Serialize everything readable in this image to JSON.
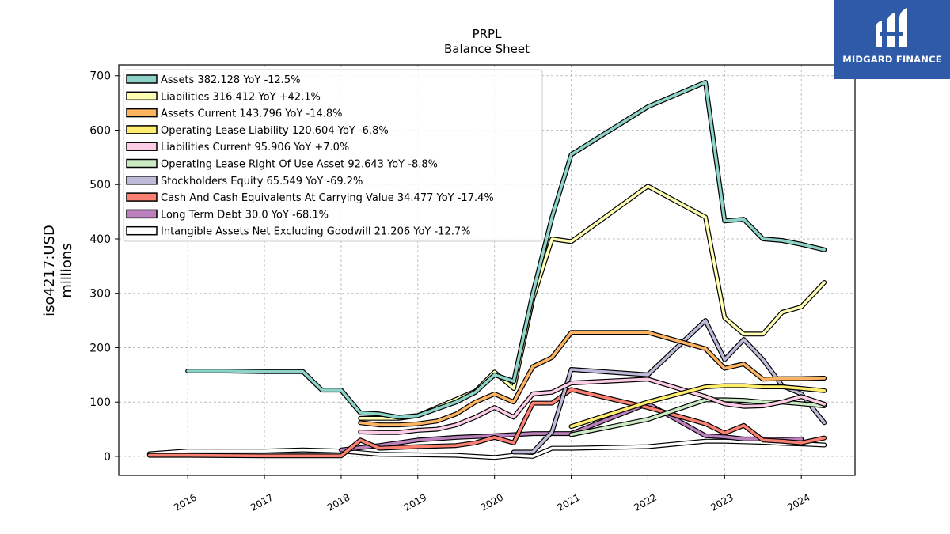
{
  "brand": {
    "name": "MIDGARD FINANCE",
    "color": "#2e5aa8"
  },
  "chart_data": {
    "type": "line",
    "title": "PRPL",
    "subtitle": "Balance  Sheet",
    "ylabel": "iso4217:USD",
    "ylabel2": "millions",
    "xlim": [
      2015.1,
      2024.7
    ],
    "ylim": [
      -35,
      720
    ],
    "yticks": [
      0,
      100,
      200,
      300,
      400,
      500,
      600,
      700
    ],
    "xticks": [
      2016,
      2017,
      2018,
      2019,
      2020,
      2021,
      2022,
      2023,
      2024
    ],
    "xticklabels": [
      "2016",
      "2017",
      "2018",
      "2019",
      "2020",
      "2021",
      "2022",
      "2023",
      "2024"
    ],
    "grid": true,
    "legend_position": "upper-left",
    "series": [
      {
        "name": "Assets  382.128 YoY -12.5%",
        "color": "#8dd3c7",
        "points": [
          [
            2016.0,
            157
          ],
          [
            2016.5,
            157
          ],
          [
            2017.0,
            156
          ],
          [
            2017.5,
            156
          ],
          [
            2017.75,
            122
          ],
          [
            2018.0,
            122
          ],
          [
            2018.25,
            80
          ],
          [
            2018.5,
            78
          ],
          [
            2018.75,
            72
          ],
          [
            2019.0,
            75
          ],
          [
            2019.5,
            100
          ],
          [
            2019.75,
            118
          ],
          [
            2020.0,
            150
          ],
          [
            2020.25,
            138
          ],
          [
            2020.5,
            300
          ],
          [
            2020.75,
            440
          ],
          [
            2021.0,
            555
          ],
          [
            2022.0,
            643
          ],
          [
            2022.75,
            688
          ],
          [
            2023.0,
            433
          ],
          [
            2023.25,
            436
          ],
          [
            2023.5,
            400
          ],
          [
            2023.75,
            397
          ],
          [
            2024.0,
            390
          ],
          [
            2024.3,
            380
          ]
        ]
      },
      {
        "name": "Liabilities  316.412 YoY +42.1%",
        "color": "#ffffb3",
        "points": [
          [
            2018.25,
            70
          ],
          [
            2018.5,
            70
          ],
          [
            2018.75,
            70
          ],
          [
            2019.0,
            75
          ],
          [
            2019.25,
            90
          ],
          [
            2019.5,
            105
          ],
          [
            2019.75,
            120
          ],
          [
            2020.0,
            155
          ],
          [
            2020.25,
            125
          ],
          [
            2020.5,
            290
          ],
          [
            2020.75,
            400
          ],
          [
            2021.0,
            395
          ],
          [
            2022.0,
            497
          ],
          [
            2022.75,
            440
          ],
          [
            2023.0,
            255
          ],
          [
            2023.25,
            225
          ],
          [
            2023.5,
            225
          ],
          [
            2023.75,
            265
          ],
          [
            2024.0,
            275
          ],
          [
            2024.3,
            320
          ]
        ]
      },
      {
        "name": "Assets Current  143.796 YoY -14.8%",
        "color": "#fdb462",
        "points": [
          [
            2018.25,
            62
          ],
          [
            2018.5,
            58
          ],
          [
            2018.75,
            58
          ],
          [
            2019.0,
            60
          ],
          [
            2019.25,
            65
          ],
          [
            2019.5,
            78
          ],
          [
            2019.75,
            100
          ],
          [
            2020.0,
            115
          ],
          [
            2020.25,
            100
          ],
          [
            2020.5,
            165
          ],
          [
            2020.75,
            182
          ],
          [
            2021.0,
            228
          ],
          [
            2022.0,
            228
          ],
          [
            2022.75,
            198
          ],
          [
            2023.0,
            162
          ],
          [
            2023.25,
            170
          ],
          [
            2023.5,
            142
          ],
          [
            2023.75,
            143
          ],
          [
            2024.0,
            143
          ],
          [
            2024.3,
            144
          ]
        ]
      },
      {
        "name": "Operating Lease Liability  120.604 YoY -6.8%",
        "color": "#ffed6f",
        "points": [
          [
            2021.0,
            55
          ],
          [
            2022.0,
            100
          ],
          [
            2022.75,
            128
          ],
          [
            2023.0,
            130
          ],
          [
            2023.25,
            130
          ],
          [
            2023.5,
            128
          ],
          [
            2023.75,
            128
          ],
          [
            2024.0,
            125
          ],
          [
            2024.3,
            121
          ]
        ]
      },
      {
        "name": "Liabilities Current  95.906 YoY +7.0%",
        "color": "#fccde5",
        "points": [
          [
            2018.25,
            45
          ],
          [
            2018.5,
            44
          ],
          [
            2018.75,
            44
          ],
          [
            2019.0,
            48
          ],
          [
            2019.25,
            50
          ],
          [
            2019.5,
            58
          ],
          [
            2019.75,
            72
          ],
          [
            2020.0,
            90
          ],
          [
            2020.25,
            72
          ],
          [
            2020.5,
            115
          ],
          [
            2020.75,
            118
          ],
          [
            2021.0,
            135
          ],
          [
            2022.0,
            142
          ],
          [
            2022.75,
            110
          ],
          [
            2023.0,
            97
          ],
          [
            2023.25,
            92
          ],
          [
            2023.5,
            93
          ],
          [
            2023.75,
            100
          ],
          [
            2024.0,
            110
          ],
          [
            2024.3,
            96
          ]
        ]
      },
      {
        "name": "Operating Lease Right Of Use Asset  92.643 YoY -8.8%",
        "color": "#ccebc5",
        "points": [
          [
            2021.0,
            40
          ],
          [
            2022.0,
            68
          ],
          [
            2022.75,
            104
          ],
          [
            2023.0,
            104
          ],
          [
            2023.25,
            103
          ],
          [
            2023.5,
            100
          ],
          [
            2023.75,
            100
          ],
          [
            2024.0,
            97
          ],
          [
            2024.3,
            93
          ]
        ]
      },
      {
        "name": "Stockholders Equity  65.549 YoY -69.2%",
        "color": "#bebada",
        "points": [
          [
            2020.25,
            8
          ],
          [
            2020.5,
            8
          ],
          [
            2020.75,
            45
          ],
          [
            2021.0,
            160
          ],
          [
            2022.0,
            150
          ],
          [
            2022.75,
            250
          ],
          [
            2023.0,
            178
          ],
          [
            2023.25,
            215
          ],
          [
            2023.5,
            178
          ],
          [
            2023.75,
            130
          ],
          [
            2024.0,
            115
          ],
          [
            2024.3,
            62
          ]
        ]
      },
      {
        "name": "Cash And Cash Equivalents At Carrying Value  34.477 YoY -17.4%",
        "color": "#fb8072",
        "points": [
          [
            2015.5,
            2
          ],
          [
            2016.0,
            2
          ],
          [
            2017.0,
            1
          ],
          [
            2018.0,
            1
          ],
          [
            2018.25,
            30
          ],
          [
            2018.5,
            15
          ],
          [
            2019.0,
            18
          ],
          [
            2019.5,
            20
          ],
          [
            2019.75,
            25
          ],
          [
            2020.0,
            35
          ],
          [
            2020.25,
            25
          ],
          [
            2020.5,
            98
          ],
          [
            2020.75,
            98
          ],
          [
            2021.0,
            123
          ],
          [
            2022.0,
            90
          ],
          [
            2022.75,
            60
          ],
          [
            2023.0,
            43
          ],
          [
            2023.25,
            57
          ],
          [
            2023.5,
            30
          ],
          [
            2023.75,
            28
          ],
          [
            2024.0,
            25
          ],
          [
            2024.3,
            34
          ]
        ]
      },
      {
        "name": "Long Term Debt  30.0 YoY -68.1%",
        "color": "#bc80bd",
        "points": [
          [
            2018.0,
            12
          ],
          [
            2018.5,
            20
          ],
          [
            2019.0,
            30
          ],
          [
            2019.5,
            35
          ],
          [
            2020.0,
            38
          ],
          [
            2020.5,
            42
          ],
          [
            2021.0,
            42
          ],
          [
            2022.0,
            97
          ],
          [
            2022.75,
            38
          ],
          [
            2023.0,
            36
          ],
          [
            2023.25,
            32
          ],
          [
            2023.5,
            32
          ],
          [
            2023.75,
            31
          ],
          [
            2024.0,
            32
          ]
        ]
      },
      {
        "name": "Intangible Assets Net Excluding Goodwill  21.206 YoY -12.7%",
        "color": "#ffffff",
        "points": [
          [
            2015.5,
            5
          ],
          [
            2016.0,
            10
          ],
          [
            2017.0,
            10
          ],
          [
            2017.5,
            12
          ],
          [
            2018.0,
            10
          ],
          [
            2018.5,
            4
          ],
          [
            2019.0,
            3
          ],
          [
            2019.5,
            2
          ],
          [
            2020.0,
            -2
          ],
          [
            2020.25,
            2
          ],
          [
            2020.5,
            0
          ],
          [
            2020.75,
            15
          ],
          [
            2021.0,
            15
          ],
          [
            2022.0,
            18
          ],
          [
            2022.75,
            28
          ],
          [
            2023.0,
            28
          ],
          [
            2023.25,
            27
          ],
          [
            2023.5,
            26
          ],
          [
            2023.75,
            24
          ],
          [
            2024.0,
            23
          ],
          [
            2024.3,
            21
          ]
        ]
      }
    ]
  }
}
